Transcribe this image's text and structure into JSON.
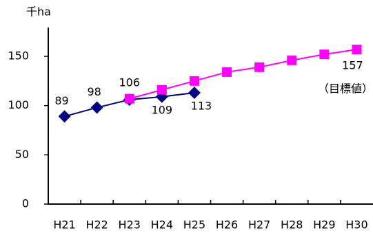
{
  "chart_data": {
    "type": "line",
    "y_label": "千ha",
    "categories": [
      "H21",
      "H22",
      "H23",
      "H24",
      "H25",
      "H26",
      "H27",
      "H28",
      "H29",
      "H30"
    ],
    "series": [
      {
        "color": "#000080",
        "marker": "diamond",
        "values": [
          89,
          98,
          106,
          109,
          113,
          null,
          null,
          null,
          null,
          null
        ],
        "value_labels": [
          "89",
          "98",
          "106",
          "109",
          "113",
          null,
          null,
          null,
          null,
          null
        ]
      },
      {
        "color": "#ff00ff",
        "marker": "square",
        "values": [
          null,
          null,
          107,
          116,
          125,
          134,
          139,
          146,
          152,
          157
        ],
        "value_labels": [
          null,
          null,
          null,
          null,
          null,
          null,
          null,
          null,
          null,
          "157"
        ]
      }
    ],
    "annotations": [
      "（目標値）"
    ],
    "ylim": [
      0,
      150
    ],
    "yticks": [
      0,
      50,
      100,
      150
    ],
    "grid": false
  }
}
